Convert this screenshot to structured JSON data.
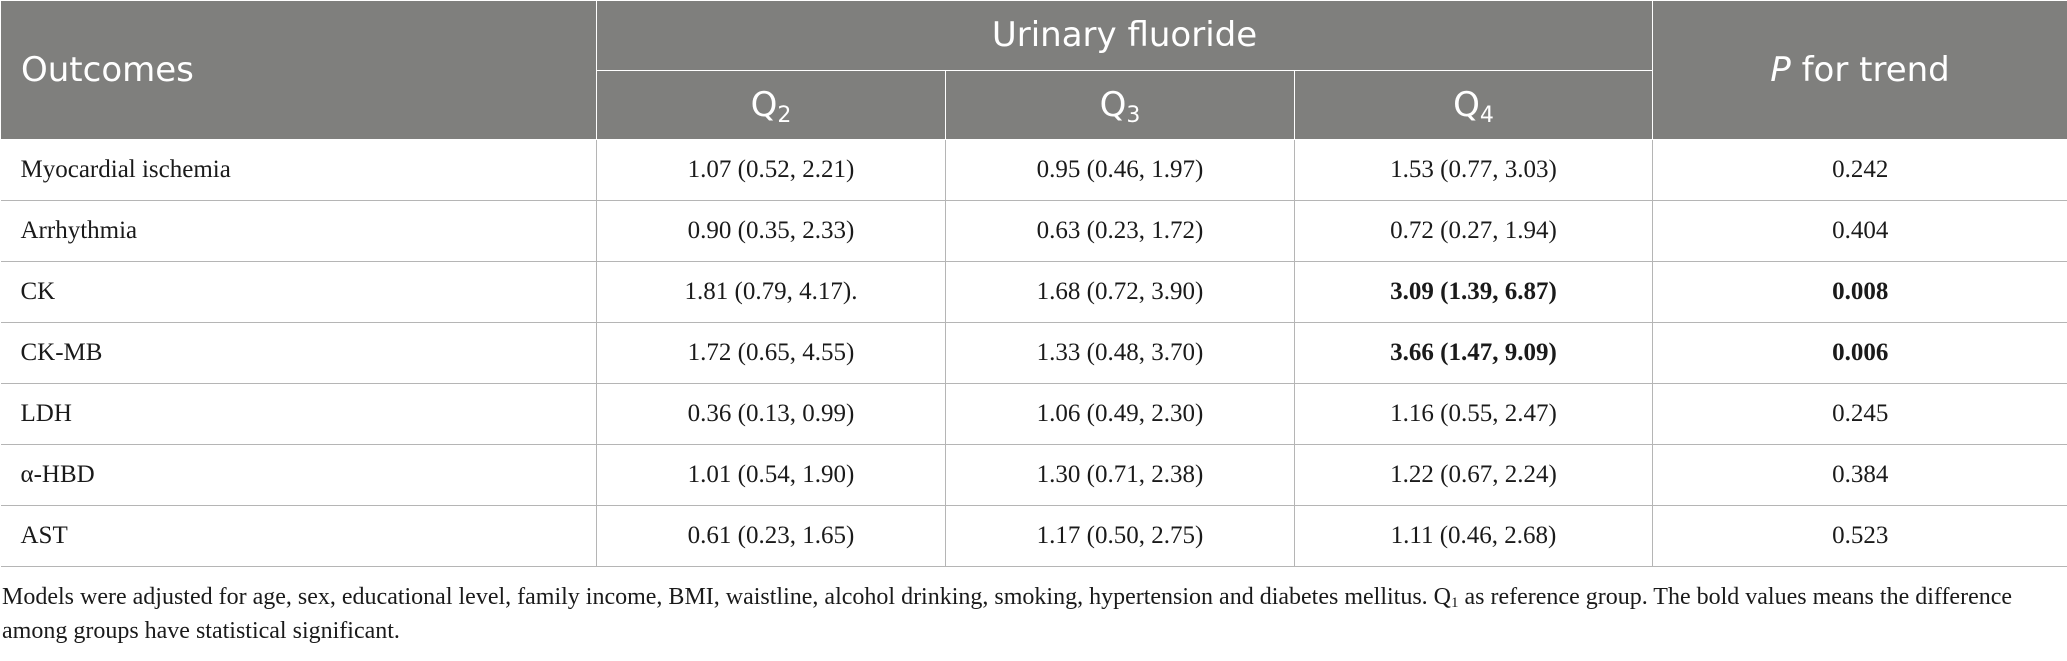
{
  "header": {
    "outcomes": "Outcomes",
    "group": "Urinary fluoride",
    "quartiles": [
      {
        "letter": "Q",
        "sub": "2"
      },
      {
        "letter": "Q",
        "sub": "3"
      },
      {
        "letter": "Q",
        "sub": "4"
      }
    ],
    "trend_italic": "P",
    "trend_rest": " for trend"
  },
  "rows": [
    {
      "name": "Myocardial ischemia",
      "q2": "1.07 (0.52, 2.21)",
      "q3": "0.95 (0.46, 1.97)",
      "q4": "1.53 (0.77, 3.03)",
      "p": "0.242"
    },
    {
      "name": "Arrhythmia",
      "q2": "0.90 (0.35, 2.33)",
      "q3": "0.63 (0.23, 1.72)",
      "q4": "0.72 (0.27, 1.94)",
      "p": "0.404"
    },
    {
      "name": "CK",
      "q2": "1.81 (0.79, 4.17).",
      "q3": "1.68 (0.72, 3.90)",
      "q4": "3.09 (1.39, 6.87)",
      "p": "0.008"
    },
    {
      "name": "CK-MB",
      "q2": "1.72 (0.65, 4.55)",
      "q3": "1.33 (0.48, 3.70)",
      "q4": "3.66 (1.47, 9.09)",
      "p": "0.006"
    },
    {
      "name": "LDH",
      "q2": "0.36 (0.13, 0.99)",
      "q3": "1.06 (0.49, 2.30)",
      "q4": "1.16 (0.55, 2.47)",
      "p": "0.245"
    },
    {
      "name": "α-HBD",
      "q2": "1.01 (0.54, 1.90)",
      "q3": "1.30 (0.71, 2.38)",
      "q4": "1.22 (0.67, 2.24)",
      "p": "0.384"
    },
    {
      "name": "AST",
      "q2": "0.61 (0.23, 1.65)",
      "q3": "1.17 (0.50, 2.75)",
      "q4": "1.11 (0.46, 2.68)",
      "p": "0.523"
    }
  ],
  "footnote": {
    "part1": "Models were adjusted for age, sex, educational level, family income, BMI, waistline, alcohol drinking, smoking, hypertension and diabetes mellitus. Q",
    "sub": "1",
    "part2": " as reference group. The bold values means the difference among groups have statistical significant."
  }
}
